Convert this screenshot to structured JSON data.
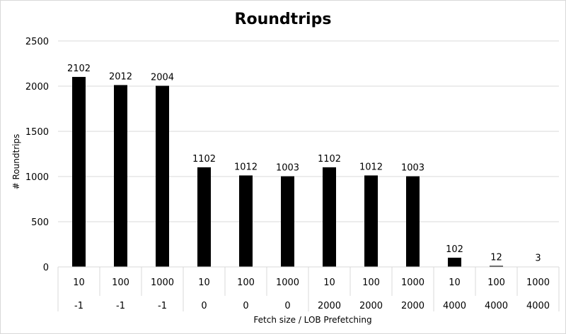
{
  "chart_data": {
    "type": "bar",
    "title": "Roundtrips",
    "ylabel": "# Roundtrips",
    "xlabel": "Fetch size / LOB Prefetching",
    "ylim": [
      0,
      2500
    ],
    "yticks": [
      0,
      500,
      1000,
      1500,
      2000,
      2500
    ],
    "grid": true,
    "legend": "none",
    "bar_color": "#000000",
    "categories": [
      {
        "fetch_size": "10",
        "lob_prefetching": "-1"
      },
      {
        "fetch_size": "100",
        "lob_prefetching": "-1"
      },
      {
        "fetch_size": "1000",
        "lob_prefetching": "-1"
      },
      {
        "fetch_size": "10",
        "lob_prefetching": "0"
      },
      {
        "fetch_size": "100",
        "lob_prefetching": "0"
      },
      {
        "fetch_size": "1000",
        "lob_prefetching": "0"
      },
      {
        "fetch_size": "10",
        "lob_prefetching": "2000"
      },
      {
        "fetch_size": "100",
        "lob_prefetching": "2000"
      },
      {
        "fetch_size": "1000",
        "lob_prefetching": "2000"
      },
      {
        "fetch_size": "10",
        "lob_prefetching": "4000"
      },
      {
        "fetch_size": "100",
        "lob_prefetching": "4000"
      },
      {
        "fetch_size": "1000",
        "lob_prefetching": "4000"
      }
    ],
    "values": [
      2102,
      2012,
      2004,
      1102,
      1012,
      1003,
      1102,
      1012,
      1003,
      102,
      12,
      3
    ]
  }
}
